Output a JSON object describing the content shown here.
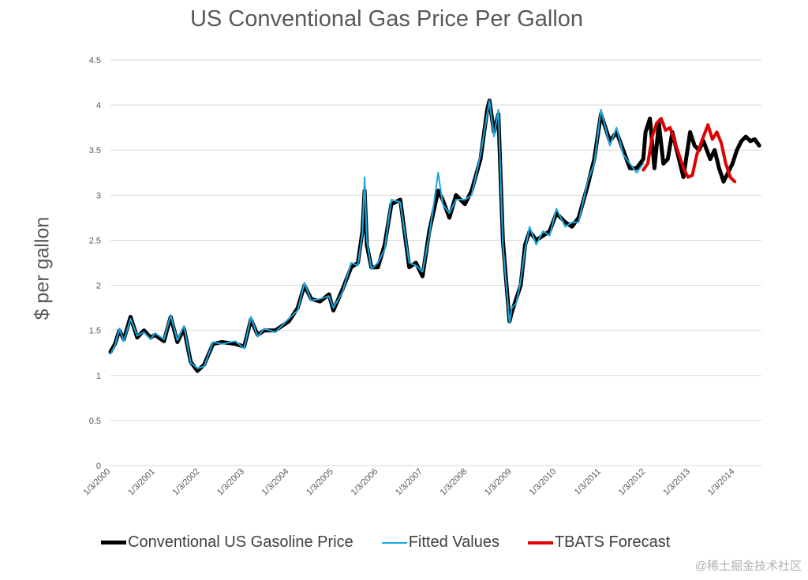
{
  "chart_data": {
    "type": "line",
    "title": "US Conventional Gas Price Per Gallon",
    "ylabel": "$ per gallon",
    "xlabel": "",
    "ylim": [
      0,
      4.5
    ],
    "yticks": [
      "0",
      "0.5",
      "1",
      "1.5",
      "2",
      "2.5",
      "3",
      "3.5",
      "4",
      "4.5"
    ],
    "xticks": [
      "1/3/2000",
      "1/3/2001",
      "1/3/2002",
      "1/3/2003",
      "1/3/2004",
      "1/3/2005",
      "1/3/2006",
      "1/3/2007",
      "1/3/2008",
      "1/3/2009",
      "1/3/2010",
      "1/3/2011",
      "1/3/2012",
      "1/3/2013",
      "1/3/2014"
    ],
    "grid": true,
    "legend_position": "bottom",
    "series": [
      {
        "name": "Conventional US Gasoline Price",
        "color": "#000000",
        "x": [
          2000.0,
          2000.1,
          2000.2,
          2000.3,
          2000.45,
          2000.6,
          2000.75,
          2000.9,
          2001.0,
          2001.2,
          2001.35,
          2001.5,
          2001.65,
          2001.8,
          2001.95,
          2002.1,
          2002.3,
          2002.5,
          2002.8,
          2003.0,
          2003.15,
          2003.3,
          2003.45,
          2003.7,
          2004.0,
          2004.2,
          2004.35,
          2004.5,
          2004.7,
          2004.9,
          2005.0,
          2005.2,
          2005.4,
          2005.55,
          2005.65,
          2005.7,
          2005.75,
          2005.85,
          2006.0,
          2006.15,
          2006.3,
          2006.5,
          2006.7,
          2006.85,
          2007.0,
          2007.15,
          2007.35,
          2007.45,
          2007.6,
          2007.75,
          2007.95,
          2008.1,
          2008.3,
          2008.45,
          2008.5,
          2008.6,
          2008.7,
          2008.8,
          2008.95,
          2009.0,
          2009.1,
          2009.2,
          2009.3,
          2009.4,
          2009.55,
          2009.7,
          2009.85,
          2010.0,
          2010.2,
          2010.35,
          2010.5,
          2010.7,
          2010.85,
          2011.0,
          2011.2,
          2011.35,
          2011.5,
          2011.65,
          2011.8,
          2011.95,
          2012.0,
          2012.1,
          2012.2,
          2012.3,
          2012.4,
          2012.5,
          2012.6,
          2012.75,
          2012.85,
          2013.0,
          2013.1,
          2013.2,
          2013.3,
          2013.45,
          2013.55,
          2013.65,
          2013.75,
          2013.85,
          2013.95,
          2014.05,
          2014.15,
          2014.25,
          2014.35,
          2014.45,
          2014.55
        ],
        "values": [
          1.26,
          1.35,
          1.5,
          1.4,
          1.65,
          1.42,
          1.5,
          1.42,
          1.45,
          1.38,
          1.65,
          1.37,
          1.52,
          1.15,
          1.05,
          1.12,
          1.35,
          1.37,
          1.35,
          1.32,
          1.62,
          1.45,
          1.5,
          1.5,
          1.6,
          1.75,
          2.0,
          1.85,
          1.82,
          1.9,
          1.72,
          1.95,
          2.2,
          2.25,
          2.6,
          3.05,
          2.45,
          2.2,
          2.2,
          2.45,
          2.9,
          2.95,
          2.2,
          2.25,
          2.1,
          2.6,
          3.05,
          2.95,
          2.75,
          3.0,
          2.9,
          3.05,
          3.4,
          3.95,
          4.05,
          3.7,
          3.9,
          2.5,
          1.6,
          1.7,
          1.85,
          2.0,
          2.45,
          2.6,
          2.5,
          2.55,
          2.6,
          2.8,
          2.7,
          2.65,
          2.75,
          3.1,
          3.4,
          3.9,
          3.6,
          3.7,
          3.5,
          3.3,
          3.3,
          3.4,
          3.7,
          3.85,
          3.3,
          3.8,
          3.35,
          3.4,
          3.7,
          3.4,
          3.2,
          3.7,
          3.55,
          3.5,
          3.6,
          3.4,
          3.5,
          3.3,
          3.15,
          3.25,
          3.35,
          3.5,
          3.6,
          3.65,
          3.6,
          3.62,
          3.55
        ],
        "emphasis": "bold"
      },
      {
        "name": "Fitted Values",
        "color": "#1aa7e0",
        "x": [
          2000.0,
          2000.1,
          2000.2,
          2000.3,
          2000.45,
          2000.6,
          2000.75,
          2000.9,
          2001.0,
          2001.2,
          2001.35,
          2001.5,
          2001.65,
          2001.8,
          2001.95,
          2002.1,
          2002.3,
          2002.5,
          2002.8,
          2003.0,
          2003.15,
          2003.3,
          2003.45,
          2003.7,
          2004.0,
          2004.2,
          2004.35,
          2004.5,
          2004.7,
          2004.9,
          2005.0,
          2005.2,
          2005.4,
          2005.55,
          2005.65,
          2005.7,
          2005.75,
          2005.85,
          2006.0,
          2006.15,
          2006.3,
          2006.5,
          2006.7,
          2006.85,
          2007.0,
          2007.15,
          2007.35,
          2007.45,
          2007.6,
          2007.75,
          2007.95,
          2008.1,
          2008.3,
          2008.45,
          2008.5,
          2008.6,
          2008.7,
          2008.8,
          2008.95,
          2009.0,
          2009.1,
          2009.2,
          2009.3,
          2009.4,
          2009.55,
          2009.7,
          2009.85,
          2010.0,
          2010.2,
          2010.35,
          2010.5,
          2010.7,
          2010.85,
          2011.0,
          2011.2,
          2011.35,
          2011.5,
          2011.65,
          2011.8,
          2011.95
        ],
        "values": [
          1.24,
          1.33,
          1.52,
          1.38,
          1.63,
          1.44,
          1.48,
          1.4,
          1.47,
          1.4,
          1.67,
          1.39,
          1.55,
          1.14,
          1.08,
          1.1,
          1.37,
          1.35,
          1.38,
          1.3,
          1.65,
          1.43,
          1.52,
          1.48,
          1.63,
          1.72,
          2.03,
          1.83,
          1.85,
          1.88,
          1.75,
          1.92,
          2.25,
          2.22,
          2.58,
          3.2,
          2.5,
          2.18,
          2.25,
          2.4,
          2.95,
          2.92,
          2.25,
          2.22,
          2.15,
          2.55,
          3.25,
          2.9,
          2.8,
          2.95,
          2.95,
          3.0,
          3.45,
          3.9,
          4.05,
          3.65,
          3.95,
          2.45,
          1.58,
          1.75,
          1.8,
          2.05,
          2.4,
          2.65,
          2.45,
          2.6,
          2.55,
          2.85,
          2.65,
          2.7,
          2.7,
          3.15,
          3.35,
          3.95,
          3.55,
          3.75,
          3.45,
          3.35,
          3.25,
          3.35
        ]
      },
      {
        "name": "TBATS Forecast",
        "color": "#e00000",
        "x": [
          2011.95,
          2012.05,
          2012.15,
          2012.25,
          2012.35,
          2012.45,
          2012.55,
          2012.65,
          2012.75,
          2012.85,
          2012.95,
          2013.05,
          2013.15,
          2013.3,
          2013.4,
          2013.5,
          2013.6,
          2013.7,
          2013.8,
          2013.9,
          2014.0
        ],
        "values": [
          3.28,
          3.35,
          3.65,
          3.8,
          3.85,
          3.72,
          3.75,
          3.6,
          3.45,
          3.3,
          3.2,
          3.22,
          3.45,
          3.65,
          3.78,
          3.62,
          3.7,
          3.58,
          3.35,
          3.2,
          3.15
        ]
      }
    ]
  },
  "watermark": "@稀土掘金技术社区"
}
